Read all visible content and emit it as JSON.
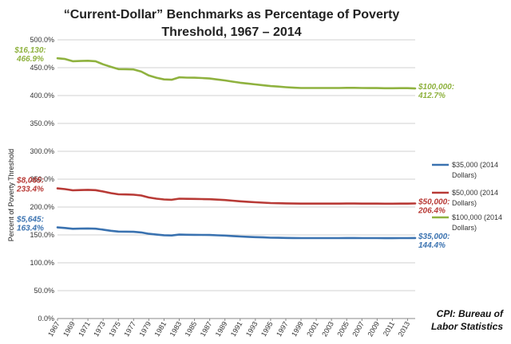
{
  "chart_data": {
    "type": "line",
    "title_lines": [
      "“Current-Dollar” Benchmarks as Percentage of Poverty",
      "Threshold, 1967 – 2014"
    ],
    "xlabel": "",
    "ylabel": "Percent of Poverty Threshold",
    "ylim": [
      0,
      500
    ],
    "ytick_values": [
      0,
      50,
      100,
      150,
      200,
      250,
      300,
      350,
      400,
      450,
      500
    ],
    "ytick_labels": [
      "0.0%",
      "50.0%",
      "100.0%",
      "150.0%",
      "200.0%",
      "250.0%",
      "300.0%",
      "350.0%",
      "400.0%",
      "450.0%",
      "500.0%"
    ],
    "x": [
      1967,
      1968,
      1969,
      1970,
      1971,
      1972,
      1973,
      1974,
      1975,
      1976,
      1977,
      1978,
      1979,
      1980,
      1981,
      1982,
      1983,
      1984,
      1985,
      1986,
      1987,
      1988,
      1989,
      1990,
      1991,
      1992,
      1993,
      1994,
      1995,
      1996,
      1997,
      1998,
      1999,
      2000,
      2001,
      2002,
      2003,
      2004,
      2005,
      2006,
      2007,
      2008,
      2009,
      2010,
      2011,
      2012,
      2013,
      2014
    ],
    "xtick_labels": [
      "1967",
      "1969",
      "1971",
      "1973",
      "1975",
      "1977",
      "1979",
      "1981",
      "1983",
      "1985",
      "1987",
      "1989",
      "1991",
      "1993",
      "1995",
      "1997",
      "1999",
      "2001",
      "2003",
      "2005",
      "2007",
      "2009",
      "2011",
      "2013"
    ],
    "series": [
      {
        "name": "$35,000 (2014 Dollars)",
        "legend_lines": [
          "$35,000 (2014",
          "Dollars)"
        ],
        "color": "#3a72b0",
        "values": [
          163.4,
          162.5,
          161.0,
          161.3,
          161.5,
          161.2,
          159.5,
          157.5,
          156.0,
          155.8,
          155.5,
          154.5,
          152.0,
          150.5,
          149.5,
          149.0,
          150.5,
          150.3,
          150.2,
          150.0,
          149.8,
          149.3,
          148.8,
          148.0,
          147.2,
          146.6,
          146.0,
          145.5,
          145.0,
          144.8,
          144.6,
          144.4,
          144.3,
          144.3,
          144.3,
          144.3,
          144.3,
          144.3,
          144.4,
          144.4,
          144.3,
          144.3,
          144.3,
          144.2,
          144.2,
          144.3,
          144.3,
          144.4
        ]
      },
      {
        "name": "$50,000 (2014 Dollars)",
        "legend_lines": [
          "$50,000 (2014",
          "Dollars)"
        ],
        "color": "#b83a36",
        "values": [
          233.4,
          232.2,
          230.0,
          230.4,
          230.8,
          230.3,
          227.8,
          225.0,
          222.8,
          222.6,
          222.2,
          220.7,
          217.1,
          215.0,
          213.6,
          213.0,
          215.0,
          214.7,
          214.6,
          214.3,
          214.0,
          213.3,
          212.6,
          211.4,
          210.3,
          209.4,
          208.6,
          207.9,
          207.1,
          206.9,
          206.6,
          206.3,
          206.1,
          206.1,
          206.1,
          206.1,
          206.1,
          206.1,
          206.3,
          206.3,
          206.1,
          206.1,
          206.1,
          206.0,
          206.0,
          206.1,
          206.1,
          206.4
        ]
      },
      {
        "name": "$100,000 (2014 Dollars)",
        "legend_lines": [
          "$100,000 (2014",
          "Dollars)"
        ],
        "color": "#8fb23f",
        "values": [
          466.9,
          465.5,
          461.5,
          462.0,
          462.5,
          461.5,
          456.0,
          451.5,
          447.5,
          447.3,
          446.9,
          443.0,
          436.0,
          432.0,
          429.0,
          428.5,
          432.7,
          432.2,
          432.0,
          431.4,
          430.5,
          428.8,
          427.2,
          425.0,
          423.0,
          421.5,
          420.0,
          418.5,
          417.0,
          416.2,
          415.0,
          414.2,
          413.6,
          413.6,
          413.6,
          413.6,
          413.6,
          413.6,
          413.8,
          413.8,
          413.6,
          413.5,
          413.4,
          413.2,
          413.2,
          413.3,
          413.3,
          412.7
        ]
      }
    ],
    "annotations": [
      {
        "series": 0,
        "side": "start",
        "lines": [
          "$5,645:",
          "163.4%"
        ]
      },
      {
        "series": 1,
        "side": "start",
        "lines": [
          "$8,065:",
          "233.4%"
        ]
      },
      {
        "series": 2,
        "side": "start",
        "lines": [
          "$16,130:",
          "466.9%"
        ]
      },
      {
        "series": 0,
        "side": "end",
        "lines": [
          "$35,000:",
          "144.4%"
        ]
      },
      {
        "series": 1,
        "side": "end",
        "lines": [
          "$50,000:",
          "206.4%"
        ]
      },
      {
        "series": 2,
        "side": "end",
        "lines": [
          "$100,000:",
          "412.7%"
        ]
      }
    ],
    "grid": true,
    "legend_position": "right",
    "source_lines": [
      "CPI: Bureau of",
      "Labor Statistics"
    ]
  }
}
